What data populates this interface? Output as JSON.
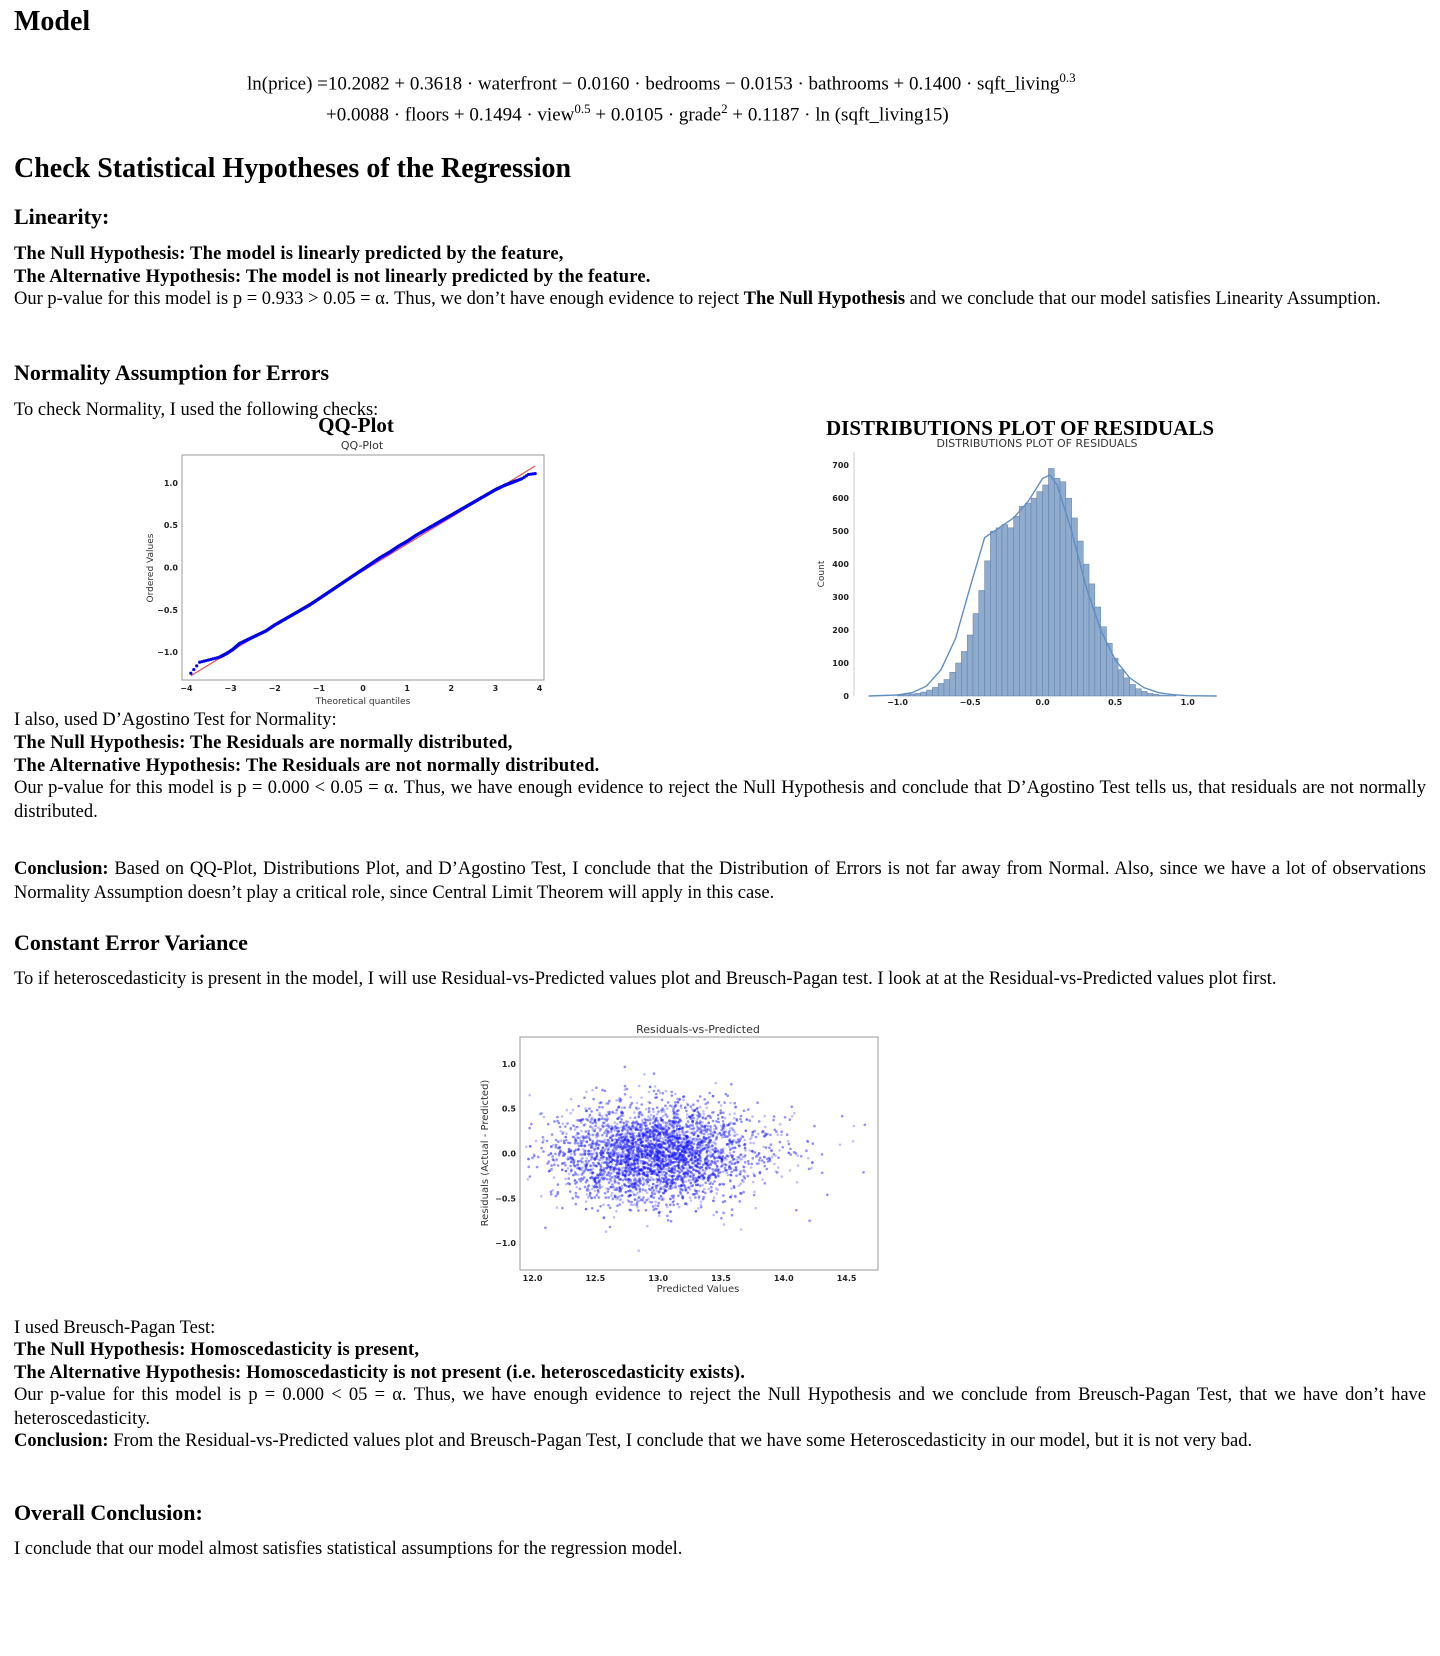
{
  "model": {
    "heading": "Model",
    "eq_line1": "ln(price) =10.2082 + 0.3618 · waterfront − 0.0160 · bedrooms − 0.0153 · bathrooms + 0.1400 · sqft_living",
    "eq_line1_sup": "0.3",
    "eq_line2_a": "+0.0088 · floors + 0.1494 · view",
    "eq_line2_sup1": "0.5",
    "eq_line2_b": " + 0.0105 · grade",
    "eq_line2_sup2": "2",
    "eq_line2_c": " + 0.1187 · ln (sqft_living15)"
  },
  "check": {
    "heading": "Check Statistical Hypotheses of the Regression"
  },
  "linearity": {
    "heading": "Linearity:",
    "null": "The Null Hypothesis: The model is linearly predicted by the feature,",
    "alt": "The Alternative Hypothesis: The model is not linearly predicted by the feature.",
    "p_a": "Our p-value for this model is p = 0.933 > 0.05 = α. Thus, we don’t have enough evidence to reject ",
    "p_bold": "The Null Hypothesis",
    "p_b": " and we conclude that our model satisfies Linearity Assumption."
  },
  "normality": {
    "heading": "Normality Assumption for Errors",
    "intro": "To check Normality, I used the following checks:",
    "qq_title": "QQ-Plot",
    "dist_title": "DISTRIBUTIONS PLOT OF RESIDUALS",
    "dagostino_intro": "I also, used D’Agostino Test for Normality:",
    "null": "The Null Hypothesis: The Residuals are normally distributed,",
    "alt": "The Alternative Hypothesis: The Residuals are not normally distributed.",
    "p_text": "Our p-value for this model is p = 0.000 < 0.05 = α. Thus, we have enough evidence to reject the Null Hypothesis and conclude that D’Agostino Test tells us, that residuals are not normally distributed.",
    "conclusion_label": "Conclusion:",
    "conclusion_text": " Based on QQ-Plot, Distributions Plot, and D’Agostino Test, I conclude that the Distribution of Errors is not far away from Normal. Also, since we have a lot of observations Normality Assumption doesn’t play a critical role, since Central Limit Theorem will apply in this case."
  },
  "variance": {
    "heading": "Constant Error Variance",
    "intro": "To if heteroscedasticity is present in the model, I will use Residual-vs-Predicted values plot and Breusch-Pagan test. I look at at the Residual-vs-Predicted values plot first.",
    "bp_intro": "I used Breusch-Pagan Test:",
    "null": "The Null Hypothesis: Homoscedasticity is present,",
    "alt": "The Alternative Hypothesis: Homoscedasticity is not present (i.e. heteroscedasticity exists).",
    "p_text": "Our p-value for this model is p = 0.000 < 05 = α. Thus, we have enough evidence to reject the Null Hypothesis and we conclude from Breusch-Pagan Test, that we have don’t have heteroscedasticity.",
    "conclusion_label": "Conclusion:",
    "conclusion_text": " From the Residual-vs-Predicted values plot and Breusch-Pagan Test, I conclude that we have some Heteroscedasticity in our model, but it is not very bad."
  },
  "overall": {
    "heading": "Overall Conclusion:",
    "text": "I conclude that our model almost satisfies statistical assumptions for the regression model."
  },
  "chart_data": [
    {
      "type": "scatter",
      "title": "QQ-Plot",
      "xlabel": "Theoretical quantiles",
      "ylabel": "Ordered Values",
      "xlim": [
        -4.1,
        4.1
      ],
      "ylim": [
        -1.33,
        1.33
      ],
      "xticks": [
        -4,
        -3,
        -2,
        -1,
        0,
        1,
        2,
        3,
        4
      ],
      "xtick_labels": [
        "−4",
        "−3",
        "−2",
        "−1",
        "0",
        "1",
        "2",
        "3",
        "4"
      ],
      "yticks": [
        -1.0,
        -0.5,
        0.0,
        0.5,
        1.0
      ],
      "ytick_labels": [
        "−1.0",
        "−0.5",
        "0.0",
        "0.5",
        "1.0"
      ],
      "reference_line": {
        "x": [
          -3.9,
          3.9
        ],
        "y": [
          -1.28,
          1.2
        ]
      },
      "points": {
        "x": [
          -3.9,
          -3.7,
          -3.55,
          -3.4,
          -3.25,
          -3.1,
          -2.95,
          -2.8,
          -2.6,
          -2.4,
          -2.2,
          -2.0,
          -1.8,
          -1.6,
          -1.4,
          -1.2,
          -1.0,
          -0.8,
          -0.6,
          -0.4,
          -0.2,
          0.0,
          0.2,
          0.4,
          0.6,
          0.8,
          1.0,
          1.2,
          1.4,
          1.6,
          1.8,
          2.0,
          2.2,
          2.4,
          2.6,
          2.8,
          3.0,
          3.2,
          3.35,
          3.5,
          3.6,
          3.75,
          3.9
        ],
        "y": [
          -1.25,
          -1.12,
          -1.1,
          -1.08,
          -1.06,
          -1.02,
          -0.97,
          -0.9,
          -0.85,
          -0.8,
          -0.75,
          -0.68,
          -0.62,
          -0.56,
          -0.5,
          -0.44,
          -0.37,
          -0.3,
          -0.23,
          -0.16,
          -0.09,
          -0.02,
          0.05,
          0.12,
          0.18,
          0.25,
          0.31,
          0.38,
          0.44,
          0.5,
          0.56,
          0.62,
          0.68,
          0.74,
          0.8,
          0.86,
          0.92,
          0.97,
          1.0,
          1.03,
          1.05,
          1.1,
          1.11
        ]
      },
      "colors": {
        "points": "#0000ee",
        "line": "#e05050"
      }
    },
    {
      "type": "bar",
      "title": "DISTRIBUTIONS PLOT OF RESIDUALS",
      "xlabel": "",
      "ylabel": "Count",
      "xlim": [
        -1.3,
        1.25
      ],
      "ylim": [
        0,
        740
      ],
      "xticks": [
        -1.0,
        -0.5,
        0.0,
        0.5,
        1.0
      ],
      "xtick_labels": [
        "−1.0",
        "−0.5",
        "0.0",
        "0.5",
        "1.0"
      ],
      "yticks": [
        0,
        100,
        200,
        300,
        400,
        500,
        600,
        700
      ],
      "ytick_labels": [
        "0",
        "100",
        "200",
        "300",
        "400",
        "500",
        "600",
        "700"
      ],
      "bin_start": -1.0,
      "bin_width": 0.04,
      "values": [
        2,
        4,
        6,
        8,
        12,
        18,
        26,
        38,
        50,
        72,
        100,
        135,
        185,
        250,
        320,
        410,
        500,
        510,
        520,
        510,
        545,
        575,
        585,
        600,
        620,
        640,
        690,
        660,
        650,
        600,
        540,
        470,
        400,
        340,
        270,
        210,
        160,
        115,
        80,
        55,
        35,
        22,
        14,
        8,
        5,
        3,
        2,
        1
      ],
      "kde_x": [
        -1.2,
        -1.0,
        -0.9,
        -0.8,
        -0.7,
        -0.6,
        -0.5,
        -0.4,
        -0.3,
        -0.2,
        -0.1,
        0.0,
        0.05,
        0.1,
        0.2,
        0.3,
        0.4,
        0.5,
        0.6,
        0.7,
        0.8,
        0.9,
        1.0,
        1.2
      ],
      "kde_y": [
        0,
        3,
        10,
        30,
        80,
        175,
        330,
        480,
        510,
        540,
        590,
        660,
        670,
        640,
        500,
        330,
        200,
        110,
        55,
        25,
        10,
        4,
        1,
        0
      ],
      "colors": {
        "bars": "#8fabcd",
        "edges": "#5f7fa8",
        "kde": "#5f8fc0"
      }
    },
    {
      "type": "scatter",
      "title": "Residuals-vs-Predicted",
      "xlabel": "Predicted Values",
      "ylabel": "Residuals (Actual - Predicted)",
      "xlim": [
        11.9,
        14.75
      ],
      "ylim": [
        -1.3,
        1.3
      ],
      "xticks": [
        12.0,
        12.5,
        13.0,
        13.5,
        14.0,
        14.5
      ],
      "xtick_labels": [
        "12.0",
        "12.5",
        "13.0",
        "13.5",
        "14.0",
        "14.5"
      ],
      "yticks": [
        -1.0,
        -0.5,
        0.0,
        0.5,
        1.0
      ],
      "ytick_labels": [
        "−1.0",
        "−0.5",
        "0.0",
        "0.5",
        "1.0"
      ],
      "cluster": {
        "center_x": 12.95,
        "center_y": 0.0,
        "spread_x": 0.38,
        "spread_y": 0.27,
        "n": 5500
      },
      "colors": {
        "points": "#1a1aff"
      }
    }
  ]
}
